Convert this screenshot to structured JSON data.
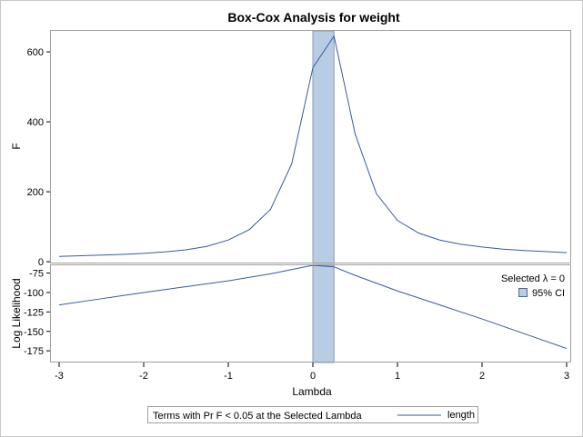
{
  "chart_data": {
    "type": "line",
    "title": "Box-Cox Analysis for weight",
    "xlabel": "Lambda",
    "xlim": [
      -3,
      3
    ],
    "x_ticks": [
      -3,
      -2,
      -1,
      0,
      1,
      2,
      3
    ],
    "x_tick_labels": [
      "-3",
      "-2",
      "-1",
      "0",
      "1",
      "2",
      "3"
    ],
    "ci_band": {
      "label": "95% CI",
      "lower": 0,
      "upper": 0.25,
      "color": "#b8cce4"
    },
    "selected_lambda_text": "Selected λ = 0",
    "line_color": "#3a5a9c",
    "panels": [
      {
        "ylabel": "F",
        "ylim": [
          -5,
          660
        ],
        "y_ticks": [
          0,
          200,
          400,
          600
        ],
        "y_tick_labels": [
          "0",
          "200",
          "400",
          "600"
        ],
        "series": {
          "name": "length",
          "x": [
            -3,
            -2.75,
            -2.5,
            -2.25,
            -2,
            -1.75,
            -1.5,
            -1.25,
            -1,
            -0.75,
            -0.5,
            -0.25,
            0,
            0.25,
            0.5,
            0.75,
            1,
            1.25,
            1.5,
            1.75,
            2,
            2.25,
            2.5,
            2.75,
            3
          ],
          "y": [
            15,
            17,
            19,
            21,
            24,
            28,
            34,
            44,
            62,
            92,
            150,
            280,
            555,
            645,
            365,
            195,
            118,
            82,
            62,
            50,
            42,
            36,
            32,
            29,
            26
          ]
        }
      },
      {
        "ylabel": "Log Likelihood",
        "ylim": [
          -190,
          -65
        ],
        "y_ticks": [
          -75,
          -100,
          -125,
          -150,
          -175
        ],
        "y_tick_labels": [
          "-75",
          "-100",
          "-125",
          "-150",
          "-175"
        ],
        "series": {
          "x": [
            -3,
            -2.5,
            -2,
            -1.5,
            -1,
            -0.5,
            0,
            0.25,
            0.5,
            1,
            1.5,
            2,
            2.5,
            3
          ],
          "y": [
            -116,
            -108,
            -100,
            -92.5,
            -85,
            -76,
            -65,
            -67,
            -78,
            -98,
            -116,
            -134,
            -153,
            -172
          ]
        }
      }
    ],
    "footer_legend": {
      "title": "Terms with Pr F < 0.05 at the Selected Lambda",
      "entries": [
        {
          "label": "length",
          "color": "#3a5a9c"
        }
      ]
    }
  }
}
